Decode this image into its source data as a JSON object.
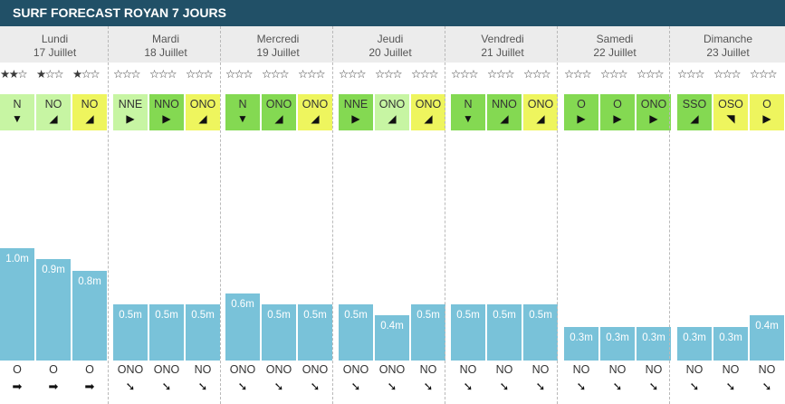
{
  "header": {
    "title": "SURF FORECAST ROYAN 7 JOURS"
  },
  "colors": {
    "header": "#215067",
    "wind_light": "#c7f5a3",
    "wind_mid": "#84d952",
    "wind_yellow": "#eef55e",
    "swell": "#79c2d9"
  },
  "days": [
    {
      "name": "Lundi",
      "date": "17 Juillet",
      "slots": [
        {
          "stars": 2,
          "wind": "N",
          "wind_color": "light",
          "wind_arrow": "▼",
          "height": "1.0m",
          "h": 1.0,
          "swell": "O",
          "swell_arrow": "➡"
        },
        {
          "stars": 1,
          "wind": "NO",
          "wind_color": "light",
          "wind_arrow": "◢",
          "height": "0.9m",
          "h": 0.9,
          "swell": "O",
          "swell_arrow": "➡"
        },
        {
          "stars": 1,
          "wind": "NO",
          "wind_color": "yellow",
          "wind_arrow": "◢",
          "height": "0.8m",
          "h": 0.8,
          "swell": "O",
          "swell_arrow": "➡"
        }
      ]
    },
    {
      "name": "Mardi",
      "date": "18 Juillet",
      "slots": [
        {
          "stars": 0,
          "wind": "NNE",
          "wind_color": "light",
          "wind_arrow": "▶",
          "height": "0.5m",
          "h": 0.5,
          "swell": "ONO",
          "swell_arrow": "➘"
        },
        {
          "stars": 0,
          "wind": "NNO",
          "wind_color": "mid",
          "wind_arrow": "▶",
          "height": "0.5m",
          "h": 0.5,
          "swell": "ONO",
          "swell_arrow": "➘"
        },
        {
          "stars": 0,
          "wind": "ONO",
          "wind_color": "yellow",
          "wind_arrow": "◢",
          "height": "0.5m",
          "h": 0.5,
          "swell": "NO",
          "swell_arrow": "➘"
        }
      ]
    },
    {
      "name": "Mercredi",
      "date": "19 Juillet",
      "slots": [
        {
          "stars": 0,
          "wind": "N",
          "wind_color": "mid",
          "wind_arrow": "▼",
          "height": "0.6m",
          "h": 0.6,
          "swell": "ONO",
          "swell_arrow": "➘"
        },
        {
          "stars": 0,
          "wind": "ONO",
          "wind_color": "mid",
          "wind_arrow": "◢",
          "height": "0.5m",
          "h": 0.5,
          "swell": "ONO",
          "swell_arrow": "➘"
        },
        {
          "stars": 0,
          "wind": "ONO",
          "wind_color": "yellow",
          "wind_arrow": "◢",
          "height": "0.5m",
          "h": 0.5,
          "swell": "ONO",
          "swell_arrow": "➘"
        }
      ]
    },
    {
      "name": "Jeudi",
      "date": "20 Juillet",
      "slots": [
        {
          "stars": 0,
          "wind": "NNE",
          "wind_color": "mid",
          "wind_arrow": "▶",
          "height": "0.5m",
          "h": 0.5,
          "swell": "ONO",
          "swell_arrow": "➘"
        },
        {
          "stars": 0,
          "wind": "ONO",
          "wind_color": "light",
          "wind_arrow": "◢",
          "height": "0.4m",
          "h": 0.4,
          "swell": "ONO",
          "swell_arrow": "➘"
        },
        {
          "stars": 0,
          "wind": "ONO",
          "wind_color": "yellow",
          "wind_arrow": "◢",
          "height": "0.5m",
          "h": 0.5,
          "swell": "NO",
          "swell_arrow": "➘"
        }
      ]
    },
    {
      "name": "Vendredi",
      "date": "21 Juillet",
      "slots": [
        {
          "stars": 0,
          "wind": "N",
          "wind_color": "mid",
          "wind_arrow": "▼",
          "height": "0.5m",
          "h": 0.5,
          "swell": "NO",
          "swell_arrow": "➘"
        },
        {
          "stars": 0,
          "wind": "NNO",
          "wind_color": "mid",
          "wind_arrow": "◢",
          "height": "0.5m",
          "h": 0.5,
          "swell": "NO",
          "swell_arrow": "➘"
        },
        {
          "stars": 0,
          "wind": "ONO",
          "wind_color": "yellow",
          "wind_arrow": "◢",
          "height": "0.5m",
          "h": 0.5,
          "swell": "NO",
          "swell_arrow": "➘"
        }
      ]
    },
    {
      "name": "Samedi",
      "date": "22 Juillet",
      "slots": [
        {
          "stars": 0,
          "wind": "O",
          "wind_color": "mid",
          "wind_arrow": "▶",
          "height": "0.3m",
          "h": 0.3,
          "swell": "NO",
          "swell_arrow": "➘"
        },
        {
          "stars": 0,
          "wind": "O",
          "wind_color": "mid",
          "wind_arrow": "▶",
          "height": "0.3m",
          "h": 0.3,
          "swell": "NO",
          "swell_arrow": "➘"
        },
        {
          "stars": 0,
          "wind": "ONO",
          "wind_color": "mid",
          "wind_arrow": "▶",
          "height": "0.3m",
          "h": 0.3,
          "swell": "NO",
          "swell_arrow": "➘"
        }
      ]
    },
    {
      "name": "Dimanche",
      "date": "23 Juillet",
      "slots": [
        {
          "stars": 0,
          "wind": "SSO",
          "wind_color": "mid",
          "wind_arrow": "◢",
          "height": "0.3m",
          "h": 0.3,
          "swell": "NO",
          "swell_arrow": "➘"
        },
        {
          "stars": 0,
          "wind": "OSO",
          "wind_color": "yellow",
          "wind_arrow": "◥",
          "height": "0.3m",
          "h": 0.3,
          "swell": "NO",
          "swell_arrow": "➘"
        },
        {
          "stars": 0,
          "wind": "O",
          "wind_color": "yellow",
          "wind_arrow": "▶",
          "height": "0.4m",
          "h": 0.4,
          "swell": "NO",
          "swell_arrow": "➘"
        }
      ]
    }
  ]
}
